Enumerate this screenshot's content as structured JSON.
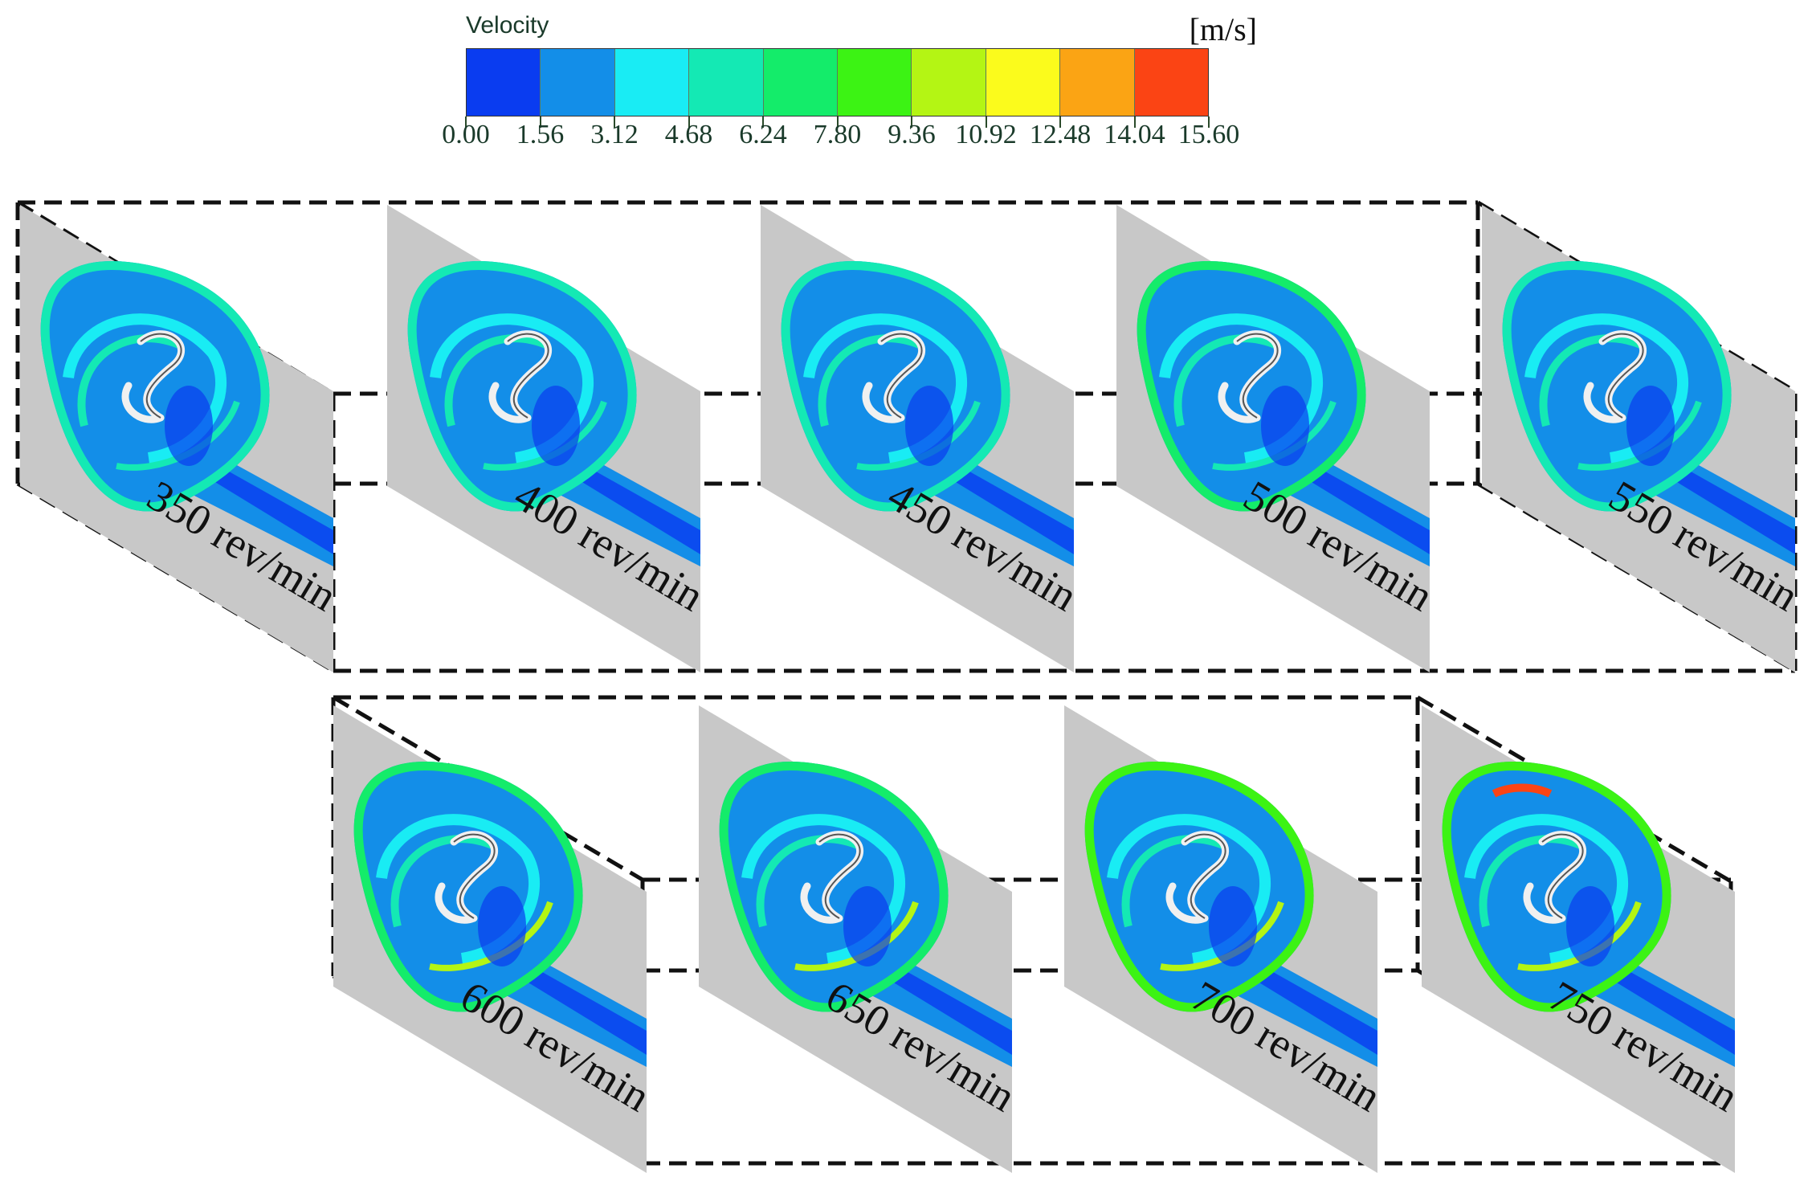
{
  "legend": {
    "title": "Velocity",
    "unit": "[m/s]",
    "ticks": [
      "0.00",
      "1.56",
      "3.12",
      "4.68",
      "6.24",
      "7.80",
      "9.36",
      "10.92",
      "12.48",
      "14.04",
      "15.60"
    ],
    "colors": [
      "#0a3cf0",
      "#138ee8",
      "#19ecf4",
      "#14e9b4",
      "#14ec6a",
      "#3cf314",
      "#b4f514",
      "#fbfb1c",
      "#fba414",
      "#fb4414"
    ]
  },
  "panels": [
    {
      "label": "350 rev/min",
      "level": 0.15
    },
    {
      "label": "400 rev/min",
      "level": 0.25
    },
    {
      "label": "450 rev/min",
      "level": 0.3
    },
    {
      "label": "500 rev/min",
      "level": 0.35
    },
    {
      "label": "550 rev/min",
      "level": 0.3
    },
    {
      "label": "600 rev/min",
      "level": 0.45
    },
    {
      "label": "650 rev/min",
      "level": 0.5
    },
    {
      "label": "700 rev/min",
      "level": 0.55
    },
    {
      "label": "750 rev/min",
      "level": 0.65
    }
  ]
}
